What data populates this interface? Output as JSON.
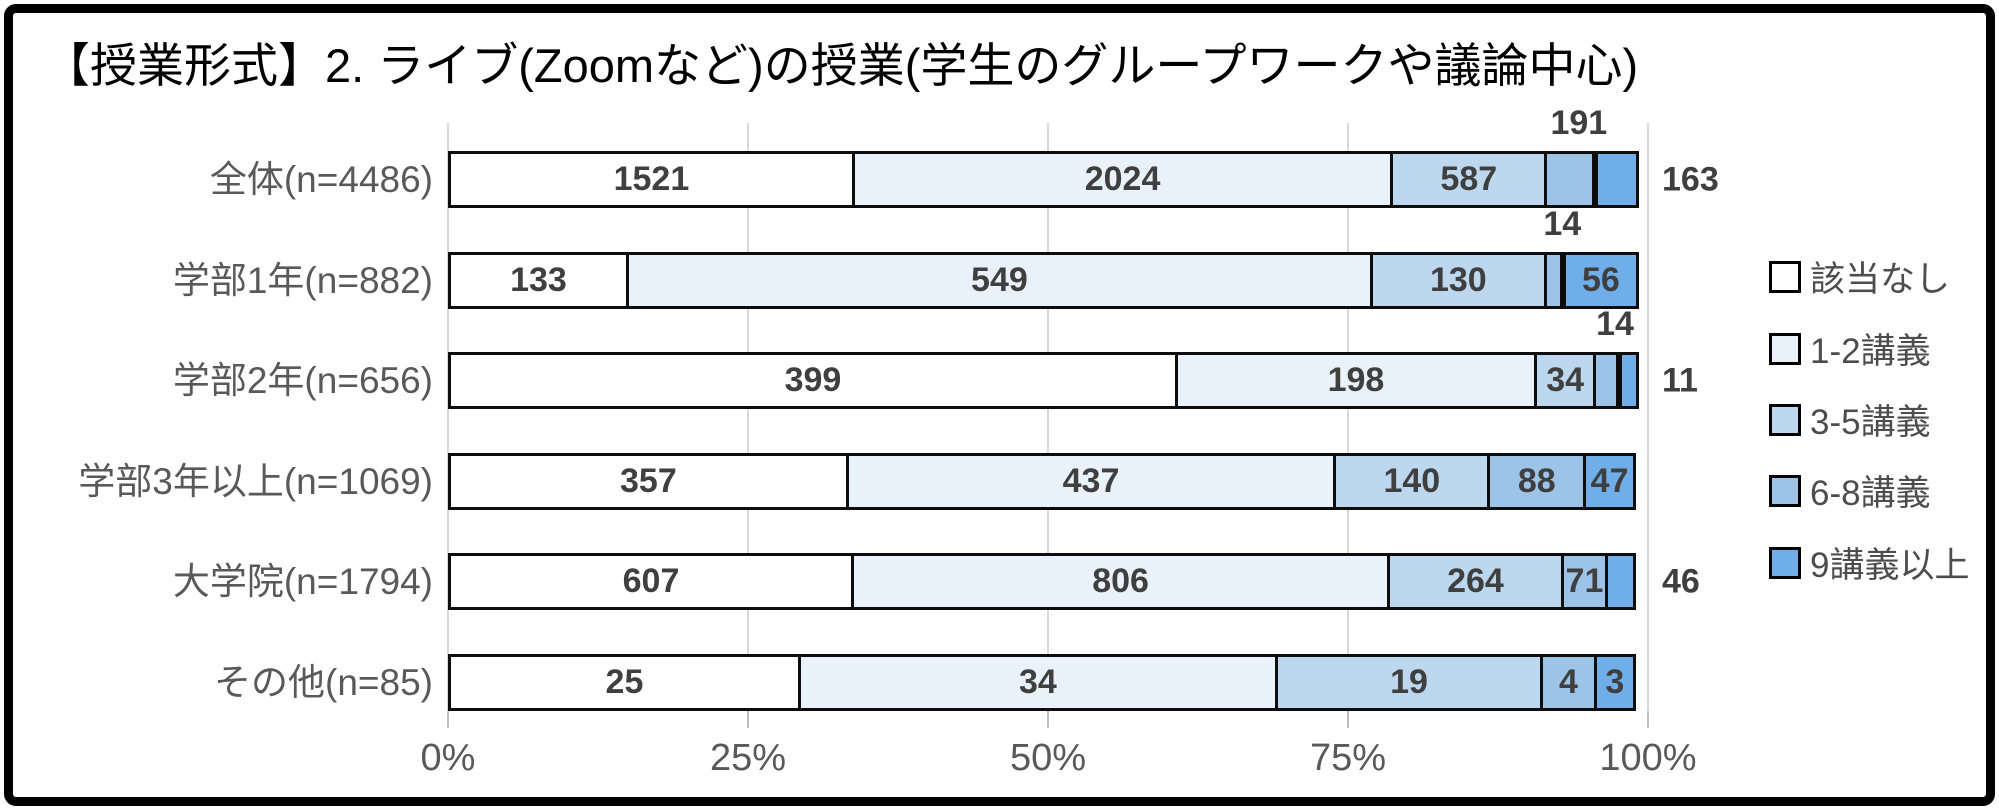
{
  "chart_data": {
    "type": "bar",
    "subtype": "horizontal-stacked-100-percent",
    "title": "【授業形式】2. ライブ(Zoomなど)の授業(学生のグループワークや議論中心)",
    "legend": [
      "該当なし",
      "1-2講義",
      "3-5講義",
      "6-8講義",
      "9講義以上"
    ],
    "colors": [
      "#FFFFFF",
      "#E9F2FA",
      "#BDD7EE",
      "#9DC3E6",
      "#6FAEE8"
    ],
    "grid_color": "#D9D9D9",
    "outline_color": "#0D0D0D",
    "x_ticks": [
      "0%",
      "25%",
      "50%",
      "75%",
      "100%"
    ],
    "xlim": [
      0,
      100
    ],
    "legend_position": "right",
    "rows": [
      {
        "label": "全体(n=4486)",
        "total": 4486,
        "values": [
          1521,
          2024,
          587,
          191,
          163
        ],
        "above": [
          3
        ],
        "outside": [
          4
        ]
      },
      {
        "label": "学部1年(n=882)",
        "total": 882,
        "values": [
          133,
          549,
          130,
          14,
          56
        ],
        "above": [
          3
        ],
        "outside": []
      },
      {
        "label": "学部2年(n=656)",
        "total": 656,
        "values": [
          399,
          198,
          34,
          14,
          11
        ],
        "above": [
          3
        ],
        "outside": [
          4
        ]
      },
      {
        "label": "学部3年以上(n=1069)",
        "total": 1069,
        "values": [
          357,
          437,
          140,
          88,
          47
        ],
        "above": [],
        "outside": []
      },
      {
        "label": "大学院(n=1794)",
        "total": 1794,
        "values": [
          607,
          806,
          264,
          71,
          46
        ],
        "above": [],
        "outside": [
          4
        ]
      },
      {
        "label": "その他(n=85)",
        "total": 85,
        "values": [
          25,
          34,
          19,
          4,
          3
        ],
        "above": [],
        "outside": []
      }
    ]
  }
}
